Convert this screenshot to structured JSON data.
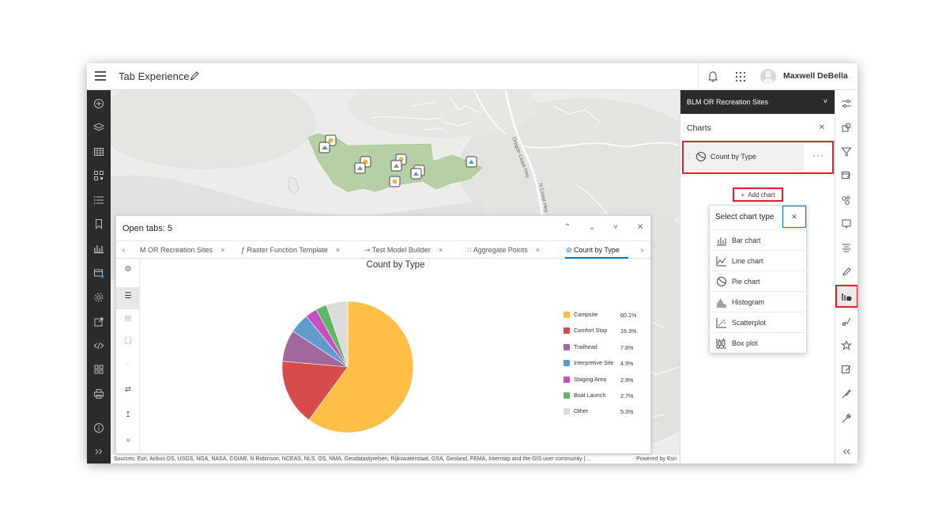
{
  "header": {
    "title": "Tab Experience",
    "user_name": "Maxwell DeBella"
  },
  "map": {
    "attribution": "Sources: Esri, Airbus DS, USGS, NGA, NASA, CGIAR, N Robinson, NCEAS, NLS, OS, NMA, Geodatastyrelsen, Rijkswaterstaat, GSA, Geoland, FEMA, Intermap and the GIS user community | ...",
    "powered_by": "Powered by Esri",
    "road_label_1": "Oregon Coast Hwy",
    "road_label_2": "N Coast Hwy"
  },
  "tab_panel": {
    "title": "Open tabs: 5",
    "tabs": [
      {
        "label": "M OR Recreation Sites",
        "icon": "layer-icon"
      },
      {
        "label": "Raster Function Template",
        "icon": "raster-function-icon"
      },
      {
        "label": "Test Model Builder",
        "icon": "model-builder-icon"
      },
      {
        "label": "Aggregate Points",
        "icon": "aggregate-icon"
      },
      {
        "label": "Count by Type",
        "icon": "pie-chart-icon",
        "active": true
      }
    ]
  },
  "chart_data": {
    "type": "pie",
    "title": "Count by Type",
    "categories": [
      "Campsite",
      "Comfort Stop",
      "Trailhead",
      "Interpretive Site",
      "Staging Area",
      "Boat Launch",
      "Other"
    ],
    "values": [
      60.1,
      16.3,
      7.8,
      4.9,
      2.9,
      2.7,
      5.3
    ],
    "labels": [
      "60.1%",
      "16.3%",
      "7.8%",
      "4.9%",
      "2.9%",
      "2.7%",
      "5.3%"
    ],
    "colors": [
      "#ffbe46",
      "#d84b4b",
      "#a0689c",
      "#5f9ccd",
      "#c64fc1",
      "#5eb862",
      "#dcdcdc"
    ],
    "legend_position": "right"
  },
  "right_panel": {
    "layer_name": "BLM OR Recreation Sites",
    "charts_title": "Charts",
    "chart_item": "Count by Type",
    "add_chart": "Add chart",
    "popup_title": "Select chart type",
    "chart_types": [
      "Bar chart",
      "Line chart",
      "Pie chart",
      "Histogram",
      "Scatterplot",
      "Box plot"
    ]
  }
}
